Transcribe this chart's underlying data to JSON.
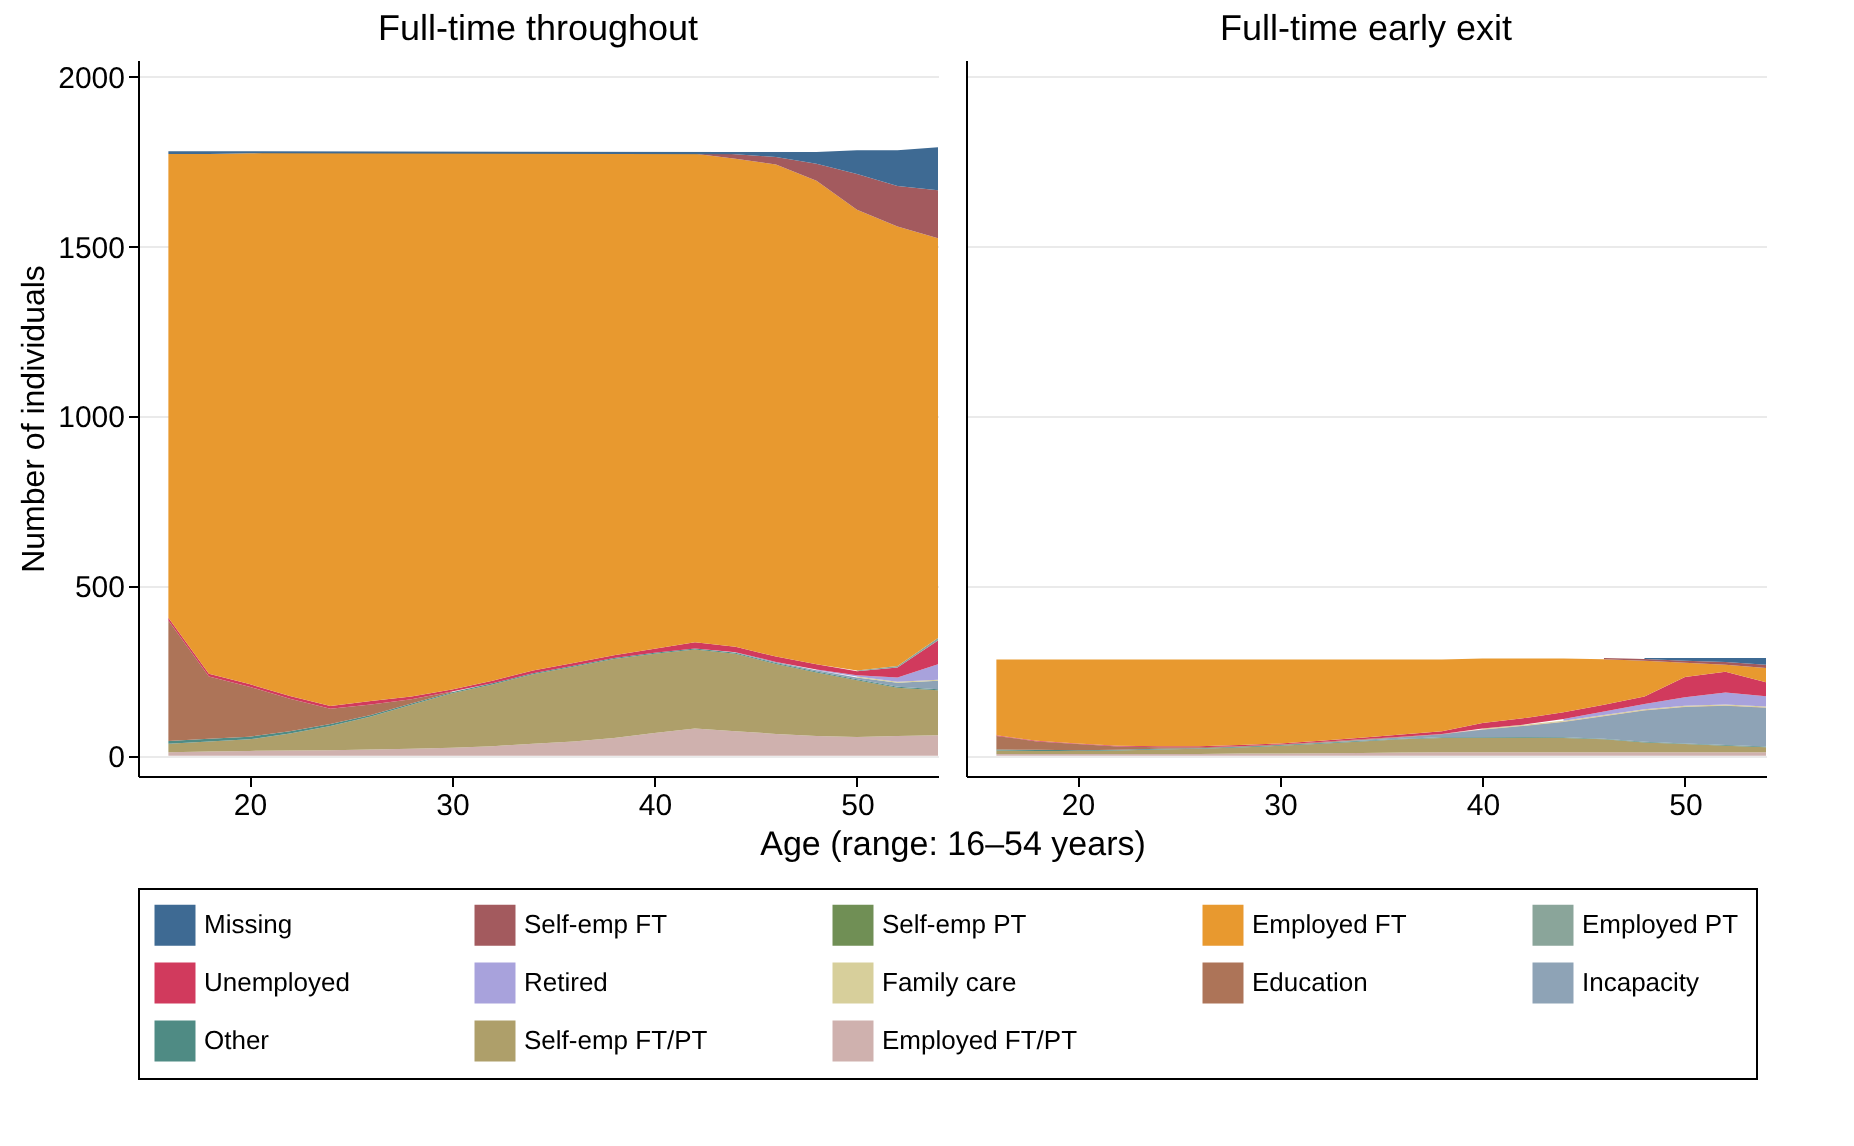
{
  "chart_data": [
    {
      "type": "area",
      "stacked": true,
      "title": "Full-time throughout",
      "xlabel": "Age (range: 16–54 years)",
      "ylabel": "Number of individuals",
      "legend": "bottom",
      "grid": "y",
      "x": [
        16,
        18,
        20,
        22,
        24,
        26,
        28,
        30,
        32,
        34,
        36,
        38,
        40,
        42,
        44,
        46,
        48,
        50,
        52,
        54
      ],
      "xlim": [
        14.5,
        54
      ],
      "xticks": [
        20,
        30,
        40,
        50
      ],
      "ylim": [
        -60,
        2050
      ],
      "yticks": [
        0,
        500,
        1000,
        1500,
        2000
      ],
      "series": [
        {
          "name": "Employed FT/PT",
          "color": "#cfb1ae",
          "values": [
            10,
            12,
            14,
            15,
            16,
            18,
            20,
            23,
            28,
            35,
            42,
            52,
            67,
            80,
            72,
            64,
            58,
            55,
            58,
            60
          ]
        },
        {
          "name": "Self-emp FT/PT",
          "color": "#ae9f6a",
          "values": [
            25,
            30,
            34,
            50,
            71,
            97,
            130,
            161,
            182,
            205,
            220,
            233,
            233,
            233,
            228,
            206,
            187,
            167,
            142,
            133
          ]
        },
        {
          "name": "Other",
          "color": "#4f8b84",
          "values": [
            8,
            8,
            8,
            7,
            6,
            5,
            4,
            3,
            3,
            3,
            3,
            3,
            3,
            3,
            3,
            3,
            3,
            3,
            3,
            3
          ]
        },
        {
          "name": "Incapacity",
          "color": "#8ea3b6",
          "values": [
            null,
            null,
            null,
            null,
            null,
            null,
            null,
            null,
            null,
            null,
            null,
            null,
            null,
            null,
            2,
            3,
            4,
            5,
            12,
            25
          ]
        },
        {
          "name": "Education",
          "color": "#ad7458",
          "values": [
            355,
            183,
            147,
            96,
            45,
            31,
            12,
            2,
            null,
            null,
            null,
            null,
            null,
            null,
            null,
            null,
            null,
            null,
            null,
            null
          ]
        },
        {
          "name": "Family care",
          "color": "#d7cf9b",
          "values": [
            null,
            null,
            null,
            null,
            null,
            null,
            null,
            null,
            null,
            null,
            null,
            null,
            null,
            null,
            null,
            null,
            null,
            3,
            3,
            3
          ]
        },
        {
          "name": "Retired",
          "color": "#a8a2dc",
          "values": [
            null,
            null,
            null,
            null,
            null,
            null,
            null,
            null,
            null,
            null,
            null,
            null,
            null,
            null,
            null,
            null,
            2,
            4,
            12,
            45
          ]
        },
        {
          "name": "Unemployed",
          "color": "#d13a5d",
          "values": [
            8,
            8,
            8,
            8,
            8,
            10,
            8,
            6,
            8,
            8,
            8,
            8,
            12,
            18,
            16,
            16,
            15,
            12,
            30,
            70
          ]
        },
        {
          "name": "Employed PT",
          "color": "#8aa59a",
          "values": [
            null,
            null,
            null,
            null,
            null,
            null,
            null,
            null,
            null,
            null,
            null,
            null,
            null,
            null,
            null,
            null,
            null,
            2,
            4,
            8
          ]
        },
        {
          "name": "Employed FT",
          "color": "#e8992f",
          "values": [
            1367,
            1532,
            1564,
            1602,
            1632,
            1617,
            1604,
            1583,
            1555,
            1525,
            1503,
            1480,
            1461,
            1440,
            1438,
            1450,
            1425,
            1358,
            1295,
            1178
          ]
        },
        {
          "name": "Self-emp PT",
          "color": "#708f55",
          "values": [
            null,
            null,
            null,
            null,
            null,
            null,
            null,
            null,
            null,
            null,
            null,
            null,
            null,
            null,
            null,
            null,
            null,
            null,
            null,
            null
          ]
        },
        {
          "name": "Self-emp FT",
          "color": "#a35a5e",
          "values": [
            null,
            null,
            null,
            null,
            null,
            null,
            null,
            null,
            null,
            null,
            null,
            null,
            null,
            5,
            13,
            22,
            50,
            105,
            120,
            141
          ]
        },
        {
          "name": "Missing",
          "color": "#3e6a93",
          "values": [
            8,
            8,
            6,
            null,
            null,
            null,
            null,
            null,
            null,
            null,
            null,
            null,
            null,
            null,
            7,
            15,
            35,
            70,
            105,
            127
          ]
        }
      ]
    },
    {
      "type": "area",
      "stacked": true,
      "title": "Full-time early exit",
      "grid": "y",
      "tick_labels": "x",
      "x": [
        16,
        18,
        20,
        22,
        24,
        26,
        28,
        30,
        32,
        34,
        36,
        38,
        40,
        42,
        44,
        46,
        48,
        50,
        52,
        54
      ],
      "xlim": [
        14.5,
        54
      ],
      "xticks": [
        20,
        30,
        40,
        50
      ],
      "ylim": [
        -60,
        2050
      ],
      "yticks": [
        0,
        500,
        1000,
        1500,
        2000
      ],
      "series": [
        {
          "name": "Employed FT/PT",
          "color": "#cfb1ae",
          "values": [
            5,
            5,
            5,
            5,
            5,
            5,
            6,
            6,
            7,
            8,
            9,
            10,
            10,
            10,
            10,
            10,
            10,
            10,
            10,
            10
          ]
        },
        {
          "name": "Self-emp FT/PT",
          "color": "#ae9f6a",
          "values": [
            10,
            9,
            9,
            10,
            13,
            15,
            18,
            23,
            28,
            34,
            39,
            42,
            42,
            43,
            42,
            38,
            29,
            24,
            19,
            15
          ]
        },
        {
          "name": "Other",
          "color": "#4f8b84",
          "values": [
            3,
            3,
            2,
            2,
            2,
            2,
            2,
            2,
            2,
            2,
            2,
            2,
            2,
            2,
            2,
            2,
            2,
            2,
            2,
            2
          ]
        },
        {
          "name": "Incapacity",
          "color": "#8ea3b6",
          "values": [
            null,
            null,
            null,
            null,
            null,
            null,
            null,
            null,
            1,
            2,
            4,
            9,
            22,
            32,
            45,
            66,
            92,
            107,
            116,
            114
          ]
        },
        {
          "name": "Education",
          "color": "#ad7458",
          "values": [
            40,
            25,
            18,
            10,
            5,
            3,
            2,
            2,
            2,
            2,
            2,
            1,
            1,
            1,
            1,
            1,
            1,
            1,
            1,
            1
          ]
        },
        {
          "name": "Family care",
          "color": "#d7cf9b",
          "values": [
            null,
            null,
            null,
            null,
            null,
            null,
            null,
            null,
            null,
            null,
            null,
            null,
            3,
            3,
            3,
            3,
            3,
            3,
            3,
            3
          ]
        },
        {
          "name": "Retired",
          "color": "#a8a2dc",
          "values": [
            null,
            null,
            null,
            null,
            null,
            null,
            null,
            null,
            null,
            null,
            null,
            null,
            null,
            null,
            5,
            10,
            15,
            25,
            35,
            30
          ]
        },
        {
          "name": "Unemployed",
          "color": "#d13a5d",
          "values": [
            2,
            2,
            2,
            2,
            3,
            3,
            3,
            3,
            4,
            5,
            6,
            8,
            16,
            19,
            20,
            20,
            22,
            60,
            61,
            41
          ]
        },
        {
          "name": "Employed FT",
          "color": "#e8992f",
          "values": [
            223,
            239,
            247,
            254,
            255,
            255,
            252,
            247,
            239,
            230,
            221,
            211,
            190,
            176,
            158,
            134,
            106,
            42,
            21,
            42
          ]
        },
        {
          "name": "Self-emp FT",
          "color": "#a35a5e",
          "values": [
            null,
            null,
            null,
            null,
            null,
            null,
            null,
            null,
            null,
            null,
            null,
            null,
            null,
            null,
            null,
            4,
            5,
            6,
            8,
            10
          ]
        },
        {
          "name": "Missing",
          "color": "#3e6a93",
          "values": [
            null,
            null,
            null,
            null,
            null,
            null,
            null,
            null,
            null,
            null,
            null,
            null,
            null,
            null,
            null,
            null,
            3,
            8,
            12,
            20
          ]
        }
      ]
    }
  ]
}
